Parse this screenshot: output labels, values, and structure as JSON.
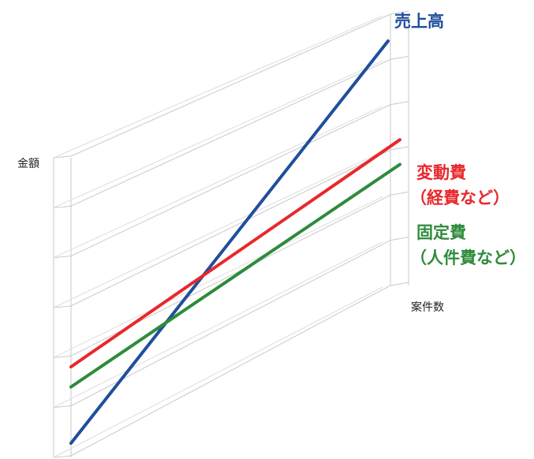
{
  "chart_data": {
    "type": "line",
    "title": "",
    "xlabel": "案件数",
    "ylabel": "金額",
    "grid": true,
    "x": [
      0,
      10
    ],
    "series": [
      {
        "name": "売上高",
        "values": [
          0,
          10
        ],
        "color": "#1f4e9c"
      },
      {
        "name": "変動費",
        "label_line2": "（経費など）",
        "values": [
          1.9,
          6.0
        ],
        "color": "#e8282c"
      },
      {
        "name": "固定費",
        "label_line2": "（人件費など）",
        "values": [
          1.4,
          5.0
        ],
        "color": "#2e8b3a"
      }
    ]
  }
}
